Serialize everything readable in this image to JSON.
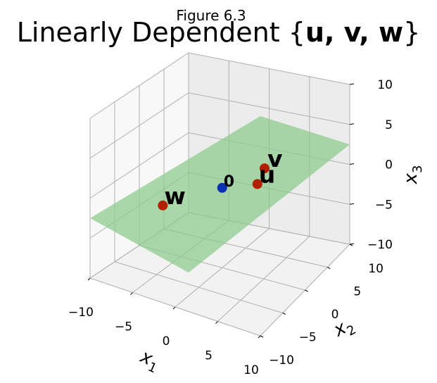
{
  "figure_label": "Figure 6.3",
  "chart_data": {
    "type": "scatter",
    "title_prefix": "Linearly Dependent {",
    "title_vars": "u, v, w",
    "title_suffix": "}",
    "xlabel": "x1",
    "ylabel": "x2",
    "zlabel": "x3",
    "xlim": [
      -10,
      10
    ],
    "ylim": [
      -10,
      10
    ],
    "zlim": [
      -10,
      10
    ],
    "xticks": [
      "−10",
      "−5",
      "0",
      "5",
      "10"
    ],
    "yticks": [
      "−10",
      "−5",
      "0",
      "5",
      "10"
    ],
    "zticks": [
      "−10",
      "−5",
      "0",
      "5",
      "10"
    ],
    "grid": true,
    "points": [
      {
        "label": "v",
        "x": 4,
        "y": 2,
        "z": 2.5,
        "color": "#b22000"
      },
      {
        "label": "u",
        "x": 2,
        "y": 4,
        "z": -1,
        "color": "#b22000"
      },
      {
        "label": "w",
        "x": -6,
        "y": -2,
        "z": -3,
        "color": "#b22000"
      },
      {
        "label": "0",
        "x": 0,
        "y": 0,
        "z": 0,
        "color": "#0a2fb0"
      }
    ],
    "plane_color": "#8ccb8c"
  }
}
